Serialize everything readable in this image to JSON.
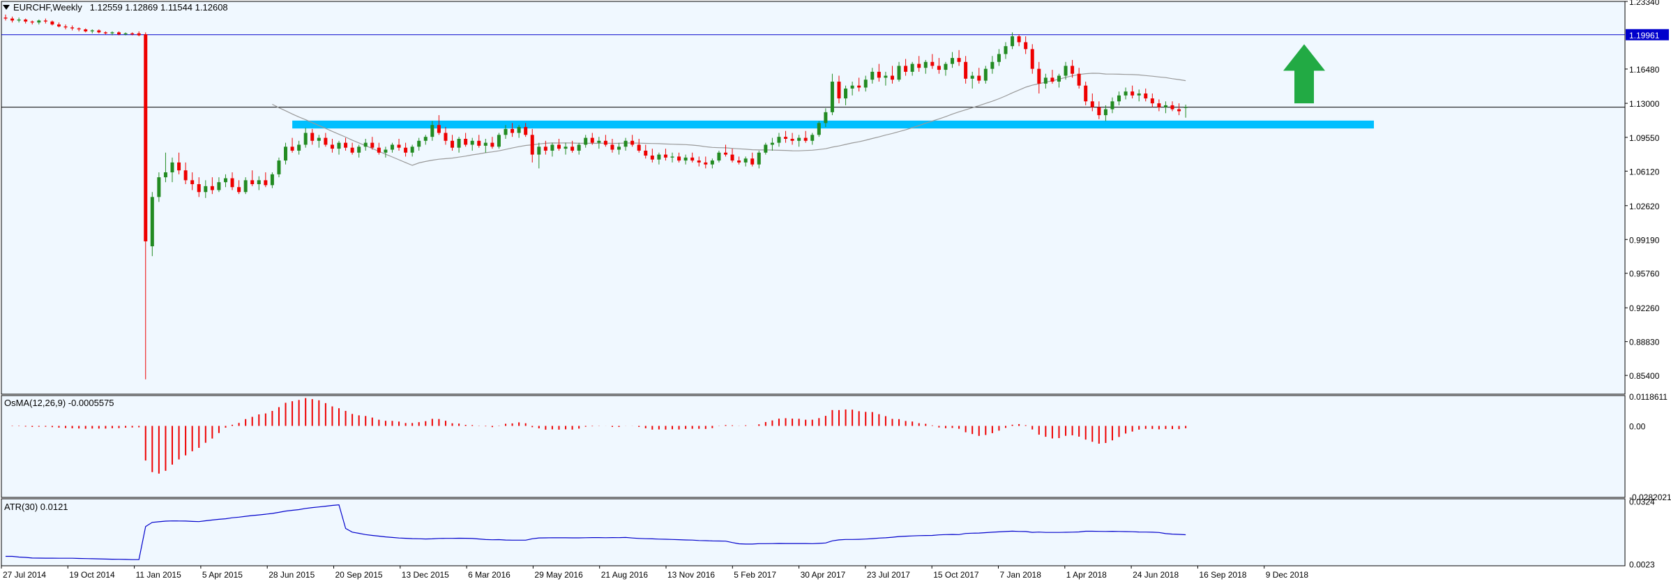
{
  "chart_data": {
    "type": "candlestick",
    "symbol": "EURCHF",
    "timeframe": "Weekly",
    "ohlc_readout": {
      "open": "1.12559",
      "high": "1.12869",
      "low": "1.11544",
      "close": "1.12608"
    },
    "price_axis": {
      "ylim": [
        0.835,
        1.2334
      ],
      "tick_labels": [
        "1.23340",
        "1.19961",
        "1.16480",
        "1.13000",
        "1.09550",
        "1.06120",
        "1.02620",
        "0.99190",
        "0.95760",
        "0.92260",
        "0.88830",
        "0.85400"
      ]
    },
    "horizontal_lines": [
      {
        "value": 1.19961,
        "label": "1.19961",
        "color": "#0000cc"
      },
      {
        "value": 1.12608,
        "label": "1.12608",
        "color": "#000000"
      }
    ],
    "support_zone": {
      "low": 1.1045,
      "high": 1.1125,
      "color": "#00bfff"
    },
    "annotation": {
      "type": "up-arrow",
      "color": "#22aa44"
    },
    "x_axis": {
      "labels": [
        "27 Jul 2014",
        "19 Oct 2014",
        "11 Jan 2015",
        "5 Apr 2015",
        "28 Jun 2015",
        "20 Sep 2015",
        "13 Dec 2015",
        "6 Mar 2016",
        "29 May 2016",
        "21 Aug 2016",
        "13 Nov 2016",
        "5 Feb 2017",
        "30 Apr 2017",
        "23 Jul 2017",
        "15 Oct 2017",
        "7 Jan 2018",
        "1 Apr 2018",
        "24 Jun 2018",
        "16 Sep 2018",
        "9 Dec 2018"
      ]
    },
    "candles": [
      [
        1.217,
        1.22,
        1.214,
        1.216
      ],
      [
        1.216,
        1.218,
        1.212,
        1.214
      ],
      [
        1.214,
        1.217,
        1.212,
        1.215
      ],
      [
        1.215,
        1.216,
        1.211,
        1.213
      ],
      [
        1.213,
        1.214,
        1.21,
        1.212
      ],
      [
        1.212,
        1.215,
        1.21,
        1.214
      ],
      [
        1.214,
        1.216,
        1.211,
        1.213
      ],
      [
        1.213,
        1.214,
        1.209,
        1.21
      ],
      [
        1.21,
        1.212,
        1.207,
        1.208
      ],
      [
        1.208,
        1.21,
        1.205,
        1.207
      ],
      [
        1.207,
        1.209,
        1.204,
        1.206
      ],
      [
        1.206,
        1.207,
        1.203,
        1.205
      ],
      [
        1.205,
        1.206,
        1.202,
        1.203
      ],
      [
        1.203,
        1.205,
        1.201,
        1.204
      ],
      [
        1.204,
        1.205,
        1.201,
        1.202
      ],
      [
        1.202,
        1.203,
        1.2,
        1.201
      ],
      [
        1.201,
        1.203,
        1.199,
        1.202
      ],
      [
        1.202,
        1.203,
        1.199,
        1.2
      ],
      [
        1.2,
        1.202,
        1.199,
        1.201
      ],
      [
        1.201,
        1.202,
        1.199,
        1.2
      ],
      [
        1.201,
        1.203,
        1.198,
        1.199
      ],
      [
        1.2,
        1.202,
        0.85,
        0.99
      ],
      [
        0.985,
        1.04,
        0.975,
        1.035
      ],
      [
        1.035,
        1.06,
        1.03,
        1.055
      ],
      [
        1.055,
        1.08,
        1.05,
        1.06
      ],
      [
        1.06,
        1.075,
        1.05,
        1.07
      ],
      [
        1.07,
        1.08,
        1.058,
        1.062
      ],
      [
        1.062,
        1.07,
        1.048,
        1.052
      ],
      [
        1.052,
        1.06,
        1.042,
        1.048
      ],
      [
        1.048,
        1.055,
        1.035,
        1.04
      ],
      [
        1.04,
        1.052,
        1.034,
        1.046
      ],
      [
        1.046,
        1.055,
        1.038,
        1.042
      ],
      [
        1.042,
        1.055,
        1.04,
        1.05
      ],
      [
        1.05,
        1.058,
        1.045,
        1.054
      ],
      [
        1.054,
        1.06,
        1.042,
        1.045
      ],
      [
        1.045,
        1.052,
        1.038,
        1.04
      ],
      [
        1.04,
        1.055,
        1.038,
        1.052
      ],
      [
        1.052,
        1.062,
        1.046,
        1.048
      ],
      [
        1.048,
        1.056,
        1.042,
        1.052
      ],
      [
        1.052,
        1.06,
        1.045,
        1.047
      ],
      [
        1.047,
        1.06,
        1.044,
        1.058
      ],
      [
        1.058,
        1.075,
        1.055,
        1.072
      ],
      [
        1.072,
        1.09,
        1.068,
        1.086
      ],
      [
        1.086,
        1.095,
        1.08,
        1.082
      ],
      [
        1.082,
        1.092,
        1.078,
        1.088
      ],
      [
        1.088,
        1.105,
        1.085,
        1.1
      ],
      [
        1.1,
        1.104,
        1.088,
        1.092
      ],
      [
        1.092,
        1.098,
        1.085,
        1.095
      ],
      [
        1.095,
        1.1,
        1.086,
        1.088
      ],
      [
        1.088,
        1.094,
        1.08,
        1.084
      ],
      [
        1.084,
        1.092,
        1.078,
        1.09
      ],
      [
        1.09,
        1.095,
        1.082,
        1.085
      ],
      [
        1.085,
        1.09,
        1.078,
        1.08
      ],
      [
        1.08,
        1.088,
        1.075,
        1.086
      ],
      [
        1.086,
        1.094,
        1.082,
        1.09
      ],
      [
        1.09,
        1.096,
        1.083,
        1.085
      ],
      [
        1.085,
        1.09,
        1.078,
        1.08
      ],
      [
        1.08,
        1.086,
        1.075,
        1.083
      ],
      [
        1.083,
        1.09,
        1.08,
        1.088
      ],
      [
        1.088,
        1.094,
        1.082,
        1.085
      ],
      [
        1.085,
        1.09,
        1.076,
        1.08
      ],
      [
        1.08,
        1.088,
        1.076,
        1.086
      ],
      [
        1.086,
        1.095,
        1.082,
        1.092
      ],
      [
        1.092,
        1.098,
        1.088,
        1.096
      ],
      [
        1.096,
        1.112,
        1.092,
        1.108
      ],
      [
        1.108,
        1.118,
        1.098,
        1.1
      ],
      [
        1.1,
        1.106,
        1.088,
        1.092
      ],
      [
        1.092,
        1.098,
        1.082,
        1.085
      ],
      [
        1.085,
        1.096,
        1.08,
        1.094
      ],
      [
        1.094,
        1.1,
        1.086,
        1.088
      ],
      [
        1.088,
        1.095,
        1.082,
        1.092
      ],
      [
        1.092,
        1.098,
        1.085,
        1.087
      ],
      [
        1.087,
        1.094,
        1.08,
        1.09
      ],
      [
        1.09,
        1.096,
        1.084,
        1.086
      ],
      [
        1.086,
        1.1,
        1.084,
        1.098
      ],
      [
        1.098,
        1.108,
        1.094,
        1.104
      ],
      [
        1.104,
        1.11,
        1.096,
        1.1
      ],
      [
        1.1,
        1.108,
        1.095,
        1.106
      ],
      [
        1.106,
        1.11,
        1.096,
        1.098
      ],
      [
        1.098,
        1.104,
        1.07,
        1.078
      ],
      [
        1.078,
        1.09,
        1.064,
        1.086
      ],
      [
        1.086,
        1.092,
        1.078,
        1.082
      ],
      [
        1.082,
        1.09,
        1.076,
        1.088
      ],
      [
        1.088,
        1.094,
        1.082,
        1.084
      ],
      [
        1.084,
        1.09,
        1.078,
        1.086
      ],
      [
        1.086,
        1.092,
        1.08,
        1.082
      ],
      [
        1.082,
        1.09,
        1.078,
        1.088
      ],
      [
        1.088,
        1.098,
        1.085,
        1.095
      ],
      [
        1.095,
        1.1,
        1.088,
        1.09
      ],
      [
        1.09,
        1.096,
        1.084,
        1.092
      ],
      [
        1.092,
        1.098,
        1.086,
        1.088
      ],
      [
        1.088,
        1.094,
        1.08,
        1.083
      ],
      [
        1.083,
        1.09,
        1.078,
        1.086
      ],
      [
        1.086,
        1.095,
        1.082,
        1.092
      ],
      [
        1.092,
        1.098,
        1.086,
        1.088
      ],
      [
        1.088,
        1.094,
        1.08,
        1.082
      ],
      [
        1.082,
        1.088,
        1.074,
        1.077
      ],
      [
        1.077,
        1.084,
        1.07,
        1.073
      ],
      [
        1.073,
        1.08,
        1.068,
        1.078
      ],
      [
        1.078,
        1.084,
        1.072,
        1.075
      ],
      [
        1.075,
        1.08,
        1.07,
        1.076
      ],
      [
        1.076,
        1.08,
        1.07,
        1.072
      ],
      [
        1.072,
        1.078,
        1.068,
        1.075
      ],
      [
        1.075,
        1.08,
        1.07,
        1.072
      ],
      [
        1.072,
        1.076,
        1.066,
        1.07
      ],
      [
        1.07,
        1.076,
        1.064,
        1.068
      ],
      [
        1.068,
        1.074,
        1.064,
        1.072
      ],
      [
        1.072,
        1.082,
        1.07,
        1.08
      ],
      [
        1.08,
        1.088,
        1.076,
        1.078
      ],
      [
        1.078,
        1.084,
        1.07,
        1.072
      ],
      [
        1.072,
        1.076,
        1.068,
        1.07
      ],
      [
        1.07,
        1.076,
        1.066,
        1.074
      ],
      [
        1.074,
        1.08,
        1.066,
        1.068
      ],
      [
        1.068,
        1.082,
        1.064,
        1.08
      ],
      [
        1.08,
        1.09,
        1.078,
        1.088
      ],
      [
        1.088,
        1.095,
        1.082,
        1.09
      ],
      [
        1.09,
        1.1,
        1.086,
        1.096
      ],
      [
        1.096,
        1.102,
        1.09,
        1.094
      ],
      [
        1.094,
        1.1,
        1.088,
        1.092
      ],
      [
        1.092,
        1.098,
        1.086,
        1.095
      ],
      [
        1.095,
        1.102,
        1.09,
        1.092
      ],
      [
        1.092,
        1.1,
        1.088,
        1.098
      ],
      [
        1.098,
        1.112,
        1.096,
        1.11
      ],
      [
        1.11,
        1.125,
        1.106,
        1.121
      ],
      [
        1.121,
        1.16,
        1.118,
        1.152
      ],
      [
        1.152,
        1.158,
        1.13,
        1.135
      ],
      [
        1.135,
        1.148,
        1.128,
        1.145
      ],
      [
        1.145,
        1.152,
        1.138,
        1.148
      ],
      [
        1.148,
        1.156,
        1.142,
        1.146
      ],
      [
        1.146,
        1.158,
        1.142,
        1.154
      ],
      [
        1.154,
        1.166,
        1.15,
        1.162
      ],
      [
        1.162,
        1.17,
        1.152,
        1.156
      ],
      [
        1.156,
        1.162,
        1.148,
        1.158
      ],
      [
        1.158,
        1.168,
        1.15,
        1.154
      ],
      [
        1.154,
        1.172,
        1.152,
        1.168
      ],
      [
        1.168,
        1.175,
        1.158,
        1.162
      ],
      [
        1.162,
        1.172,
        1.158,
        1.17
      ],
      [
        1.17,
        1.178,
        1.162,
        1.166
      ],
      [
        1.166,
        1.174,
        1.16,
        1.172
      ],
      [
        1.172,
        1.18,
        1.165,
        1.168
      ],
      [
        1.168,
        1.176,
        1.16,
        1.164
      ],
      [
        1.164,
        1.172,
        1.158,
        1.17
      ],
      [
        1.17,
        1.182,
        1.166,
        1.176
      ],
      [
        1.176,
        1.184,
        1.168,
        1.172
      ],
      [
        1.172,
        1.178,
        1.15,
        1.155
      ],
      [
        1.155,
        1.162,
        1.145,
        1.158
      ],
      [
        1.158,
        1.166,
        1.15,
        1.153
      ],
      [
        1.153,
        1.168,
        1.15,
        1.165
      ],
      [
        1.165,
        1.178,
        1.16,
        1.172
      ],
      [
        1.172,
        1.185,
        1.168,
        1.18
      ],
      [
        1.18,
        1.192,
        1.175,
        1.188
      ],
      [
        1.188,
        1.202,
        1.185,
        1.198
      ],
      [
        1.198,
        1.2,
        1.188,
        1.192
      ],
      [
        1.192,
        1.198,
        1.18,
        1.185
      ],
      [
        1.185,
        1.19,
        1.16,
        1.165
      ],
      [
        1.165,
        1.172,
        1.14,
        1.15
      ],
      [
        1.15,
        1.16,
        1.145,
        1.156
      ],
      [
        1.156,
        1.164,
        1.15,
        1.152
      ],
      [
        1.152,
        1.16,
        1.146,
        1.158
      ],
      [
        1.158,
        1.172,
        1.154,
        1.168
      ],
      [
        1.168,
        1.174,
        1.156,
        1.16
      ],
      [
        1.16,
        1.166,
        1.145,
        1.148
      ],
      [
        1.148,
        1.152,
        1.128,
        1.132
      ],
      [
        1.132,
        1.14,
        1.122,
        1.126
      ],
      [
        1.126,
        1.132,
        1.114,
        1.118
      ],
      [
        1.118,
        1.128,
        1.112,
        1.124
      ],
      [
        1.124,
        1.136,
        1.12,
        1.132
      ],
      [
        1.132,
        1.142,
        1.128,
        1.138
      ],
      [
        1.138,
        1.146,
        1.134,
        1.142
      ],
      [
        1.142,
        1.148,
        1.135,
        1.138
      ],
      [
        1.138,
        1.144,
        1.132,
        1.14
      ],
      [
        1.14,
        1.145,
        1.132,
        1.135
      ],
      [
        1.135,
        1.14,
        1.126,
        1.13
      ],
      [
        1.13,
        1.134,
        1.122,
        1.126
      ],
      [
        1.126,
        1.132,
        1.12,
        1.128
      ],
      [
        1.128,
        1.132,
        1.122,
        1.124
      ],
      [
        1.124,
        1.13,
        1.118,
        1.122
      ],
      [
        1.12559,
        1.12869,
        1.11544,
        1.12608
      ]
    ],
    "osma": {
      "label": "OsMA(12,26,9) -0.0005575",
      "ylim": [
        -0.0285,
        0.0121
      ],
      "tick_labels": [
        "0.0118611",
        "0.00",
        "-0.0282021"
      ]
    },
    "atr": {
      "label": "ATR(30) 0.0121",
      "ylim": [
        0.0015,
        0.0335
      ],
      "tick_labels": [
        "0.0324",
        "0.0023"
      ]
    }
  },
  "colors": {
    "background": "#f0f8ff",
    "bull": "#228b22",
    "bear": "#ee0000",
    "grid_border": "#000000",
    "ma_line": "#999999",
    "atr_line": "#0000cc",
    "osma_bar": "#ee0000"
  }
}
